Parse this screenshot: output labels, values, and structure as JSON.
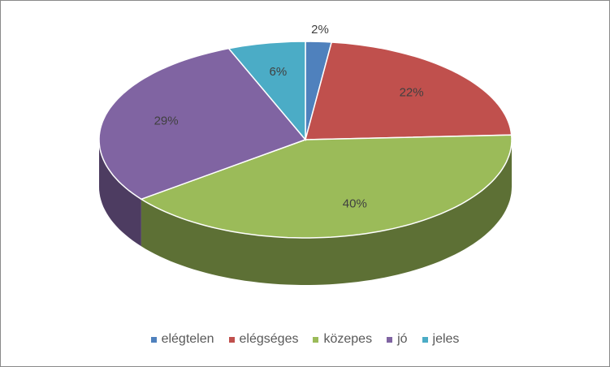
{
  "chart_data": {
    "type": "pie3d",
    "categories": [
      "elégtelen",
      "elégséges",
      "közepes",
      "jó",
      "jeles"
    ],
    "values": [
      2,
      22,
      40,
      29,
      6
    ],
    "value_labels": [
      "2%",
      "22%",
      "40%",
      "29%",
      "6%"
    ],
    "colors": [
      "#4f81bd",
      "#c0504d",
      "#9bbb59",
      "#8064a2",
      "#4bacc6"
    ],
    "legend": "bottom"
  }
}
